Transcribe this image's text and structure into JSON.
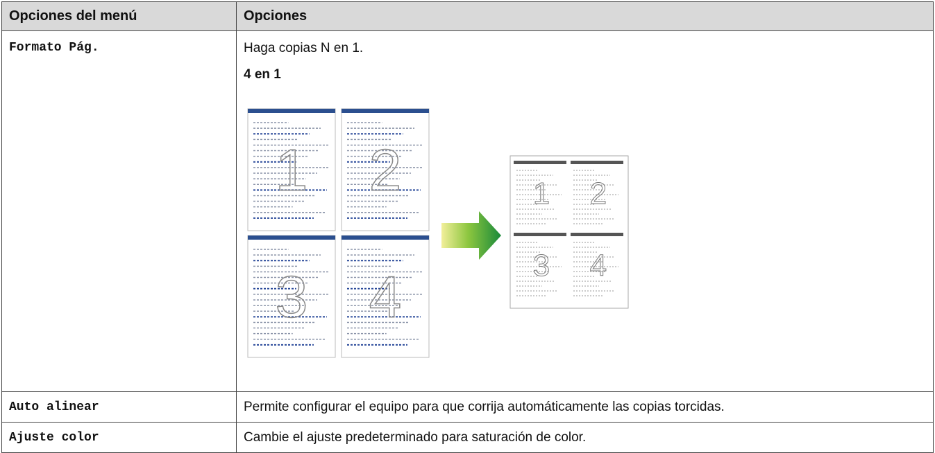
{
  "table": {
    "headers": [
      "Opciones del menú",
      "Opciones"
    ],
    "rows": [
      {
        "option": "Formato Pág.",
        "description": "Haga copias N en 1.",
        "subheading": "4 en 1",
        "illustration": {
          "source_pages": [
            "1",
            "2",
            "3",
            "4"
          ],
          "result_pages": [
            "1",
            "2",
            "3",
            "4"
          ]
        }
      },
      {
        "option": "Auto alinear",
        "description": "Permite configurar el equipo para que corrija automáticamente las copias torcidas."
      },
      {
        "option": "Ajuste color",
        "description": "Cambie el ajuste predeterminado para saturación de color."
      }
    ]
  }
}
